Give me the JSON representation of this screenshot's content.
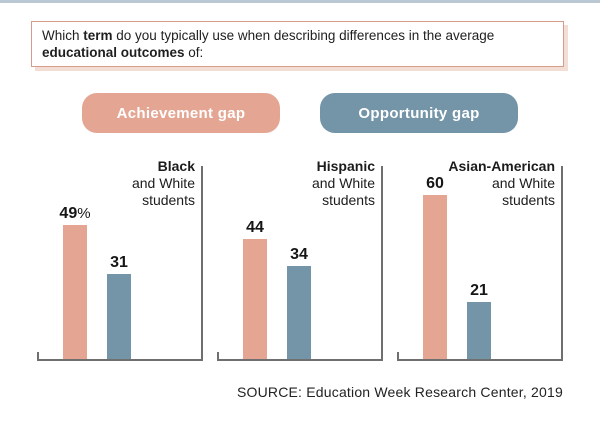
{
  "page": {
    "background": "#ffffff",
    "top_border_color": "#b9c8d2",
    "axis_color": "#6f6f6f"
  },
  "question": {
    "prefix": "Which ",
    "bold1": "term",
    "middle": " do you typically use when describing differences in the average",
    "bold2": "educational outcomes",
    "suffix": " of:",
    "border_color": "#d69c8b",
    "shadow_color": "#f3ded5"
  },
  "legend": [
    {
      "label": "Achievement gap",
      "color": "#e4a593"
    },
    {
      "label": "Opportunity gap",
      "color": "#7495a8"
    }
  ],
  "groups": [
    {
      "category": "Black and White students",
      "title_line1": "Black",
      "title_line2": "and White",
      "title_line3": "students",
      "bars": [
        {
          "series": "Achievement gap",
          "value": 49,
          "label": "49",
          "suffix": "%"
        },
        {
          "series": "Opportunity gap",
          "value": 31,
          "label": "31",
          "suffix": ""
        }
      ]
    },
    {
      "category": "Hispanic and White students",
      "title_line1": "Hispanic",
      "title_line2": "and White",
      "title_line3": "students",
      "bars": [
        {
          "series": "Achievement gap",
          "value": 44,
          "label": "44",
          "suffix": ""
        },
        {
          "series": "Opportunity gap",
          "value": 34,
          "label": "34",
          "suffix": ""
        }
      ]
    },
    {
      "category": "Asian-American and White students",
      "title_line1": "Asian-American",
      "title_line2": "and White",
      "title_line3": "students",
      "bars": [
        {
          "series": "Achievement gap",
          "value": 60,
          "label": "60",
          "suffix": ""
        },
        {
          "series": "Opportunity gap",
          "value": 21,
          "label": "21",
          "suffix": ""
        }
      ]
    }
  ],
  "source": "SOURCE: Education Week Research Center, 2019",
  "chart_data": {
    "type": "bar",
    "title": "Which term do you typically use when describing differences in the average educational outcomes of:",
    "categories": [
      "Black and White students",
      "Hispanic and White students",
      "Asian-American and White students"
    ],
    "series": [
      {
        "name": "Achievement gap",
        "color": "#e4a593",
        "values": [
          49,
          44,
          60
        ]
      },
      {
        "name": "Opportunity gap",
        "color": "#7495a8",
        "values": [
          31,
          34,
          21
        ]
      }
    ],
    "value_unit": "percent",
    "first_value_label_suffix": "%",
    "ylim": [
      0,
      71
    ],
    "grid": false,
    "legend_position": "top",
    "source": "SOURCE: Education Week Research Center, 2019"
  }
}
